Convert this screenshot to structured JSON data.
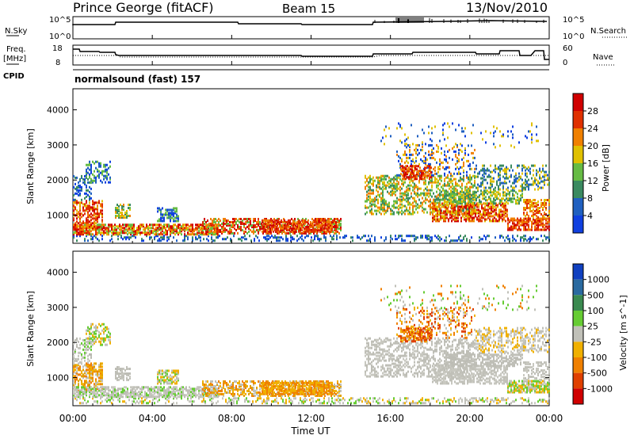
{
  "header": {
    "station": "Prince George (fitACF)",
    "beam": "Beam 15",
    "date": "13/Nov/2010"
  },
  "panels": {
    "nsky_label": "N.Sky",
    "nsky_ticks": [
      "10^5",
      "10^0"
    ],
    "nsearch_label": "N.Search",
    "nsearch_ticks": [
      "10^5",
      "10^0"
    ],
    "freq_label": "Freq.",
    "freq_unit": "[MHz]",
    "freq_ticks": [
      "18",
      "8"
    ],
    "nave_label": "Nave",
    "nave_ticks": [
      "60",
      "0"
    ],
    "cpid_label": "CPID",
    "cpid_value": "normalsound (fast) 157"
  },
  "chart_data": [
    {
      "type": "heatmap",
      "name": "power",
      "ylabel": "Slant Range [km]",
      "yticks": [
        "1000",
        "2000",
        "3000",
        "4000"
      ],
      "ylim": [
        200,
        4600
      ],
      "colorbar_label": "Power [dB]",
      "colorbar_ticks": [
        "4",
        "8",
        "12",
        "16",
        "20",
        "24",
        "28"
      ],
      "colors": [
        "#1040e0",
        "#2060c0",
        "#3a8a60",
        "#66bb44",
        "#e0c000",
        "#f08000",
        "#e03000",
        "#d00000"
      ]
    },
    {
      "type": "heatmap",
      "name": "velocity",
      "ylabel": "Slant Range [km]",
      "yticks": [
        "1000",
        "2000",
        "3000",
        "4000"
      ],
      "ylim": [
        200,
        4600
      ],
      "colorbar_label": "Velocity [m s^-1]",
      "colorbar_ticks": [
        "1000",
        "500",
        "100",
        "25",
        "-25",
        "-100",
        "-500",
        "-1000"
      ],
      "colors": [
        "#1040c0",
        "#2a6aa0",
        "#3a8a50",
        "#66cc33",
        "#c0c0b8",
        "#f0b000",
        "#f08000",
        "#e04000",
        "#d00000"
      ],
      "x_ticks": [
        "00:00",
        "04:00",
        "08:00",
        "12:00",
        "16:00",
        "20:00",
        "00:00"
      ],
      "xlabel": "Time UT"
    }
  ]
}
